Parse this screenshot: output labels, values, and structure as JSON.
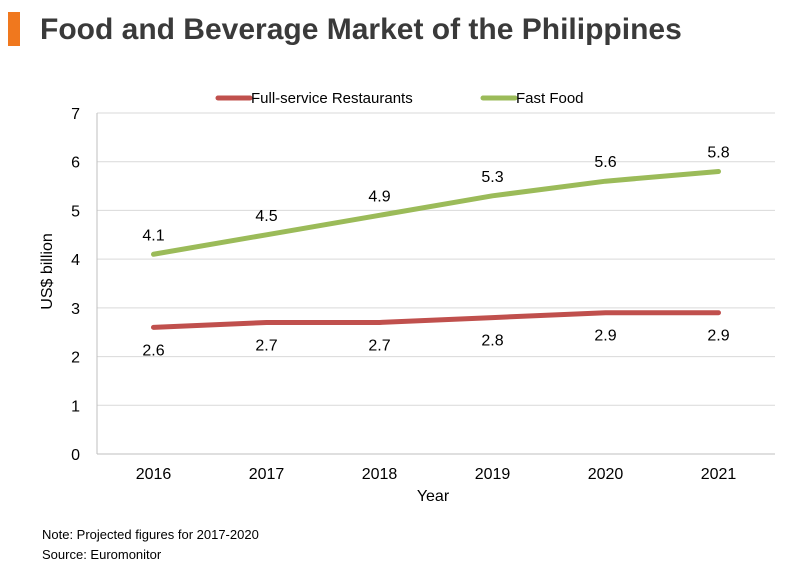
{
  "title": "Food and Beverage Market of the Philippines",
  "accent_color": "#f0781e",
  "notes": {
    "note": "Note: Projected figures for 2017-2020",
    "source": "Source: Euromonitor"
  },
  "chart_data": {
    "type": "line",
    "title": "Food and Beverage Market of the Philippines",
    "xlabel": "Year",
    "ylabel": "US$ billion",
    "categories": [
      "2016",
      "2017",
      "2018",
      "2019",
      "2020",
      "2021"
    ],
    "ylim": [
      0,
      7
    ],
    "yticks": [
      0,
      1,
      2,
      3,
      4,
      5,
      6,
      7
    ],
    "grid": true,
    "legend_position": "top",
    "series": [
      {
        "name": "Full-service Restaurants",
        "color": "#c0504d",
        "values": [
          2.6,
          2.7,
          2.7,
          2.8,
          2.9,
          2.9
        ],
        "labels": [
          "2.6",
          "2.7",
          "2.7",
          "2.8",
          "2.9",
          "2.9"
        ],
        "label_side": "below"
      },
      {
        "name": "Fast Food",
        "color": "#9bbb59",
        "values": [
          4.1,
          4.5,
          4.9,
          5.3,
          5.6,
          5.8
        ],
        "labels": [
          "4.1",
          "4.5",
          "4.9",
          "5.3",
          "5.6",
          "5.8"
        ],
        "label_side": "above"
      }
    ]
  }
}
